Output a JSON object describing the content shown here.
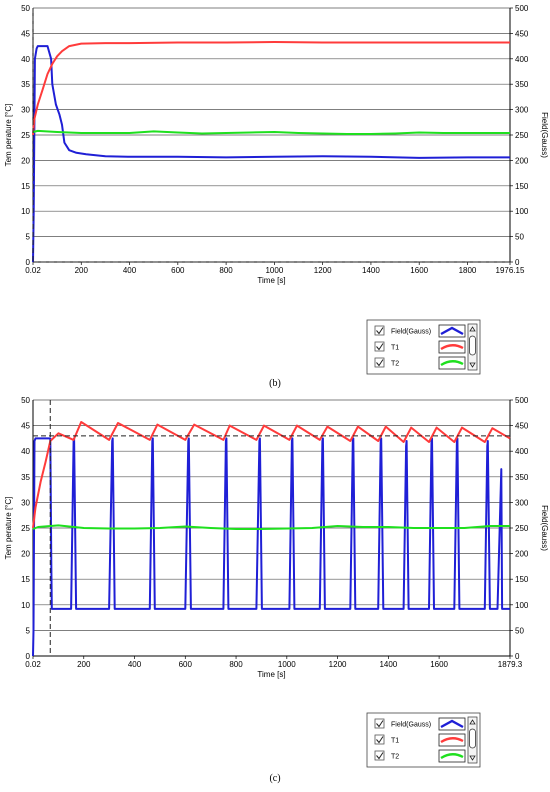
{
  "panels": [
    {
      "caption": "(b)",
      "legend": {
        "items": [
          {
            "label": "Field(Gauss)",
            "checked": true,
            "color": "#1f1fd6"
          },
          {
            "label": "T1",
            "checked": true,
            "color": "#ff3b3b"
          },
          {
            "label": "T2",
            "checked": true,
            "color": "#1fe01f"
          }
        ],
        "scroll_up": "up-arrow",
        "scroll_down": "down-arrow"
      }
    },
    {
      "caption": "(c)",
      "legend": {
        "items": [
          {
            "label": "Field(Gauss)",
            "checked": true,
            "color": "#1f1fd6"
          },
          {
            "label": "T1",
            "checked": true,
            "color": "#ff3b3b"
          },
          {
            "label": "T2",
            "checked": true,
            "color": "#1fe01f"
          }
        ],
        "scroll_up": "up-arrow",
        "scroll_down": "down-arrow"
      }
    }
  ],
  "chart_data": [
    {
      "type": "line",
      "title": "",
      "xlabel": "Time [s]",
      "ylabel": "Tem perature [°C]",
      "y2label": "Field(Gauss)",
      "xlim": [
        0.02,
        1976.15
      ],
      "ylim": [
        0,
        50
      ],
      "y2lim": [
        0,
        500
      ],
      "grid": "horizontal",
      "x_ticks": [
        "0.02",
        "200",
        "400",
        "600",
        "800",
        "1000",
        "1200",
        "1400",
        "1600",
        "1800",
        "1976.15"
      ],
      "x_tick_values": [
        0.02,
        200,
        400,
        600,
        800,
        1000,
        1200,
        1400,
        1600,
        1800,
        1976.15
      ],
      "y_ticks": [
        "0",
        "5",
        "10",
        "15",
        "20",
        "25",
        "30",
        "35",
        "40",
        "45",
        "50"
      ],
      "y_tick_values": [
        0,
        5,
        10,
        15,
        20,
        25,
        30,
        35,
        40,
        45,
        50
      ],
      "y2_ticks": [
        "0",
        "50",
        "100",
        "150",
        "200",
        "250",
        "300",
        "350",
        "400",
        "450",
        "500"
      ],
      "y2_tick_values": [
        0,
        50,
        100,
        150,
        200,
        250,
        300,
        350,
        400,
        450,
        500
      ],
      "markers": [
        {
          "x": 0.02,
          "style": "dashed-vertical"
        },
        {
          "y": 0,
          "style": "dashed-horizontal"
        }
      ],
      "series": [
        {
          "name": "Field(Gauss)",
          "color": "#1f1fd6",
          "axis": "right",
          "x": [
            0,
            3,
            8,
            15,
            20,
            30,
            60,
            75,
            80,
            95,
            110,
            120,
            130,
            150,
            180,
            220,
            300,
            400,
            600,
            800,
            1000,
            1200,
            1400,
            1600,
            1800,
            1976
          ],
          "y": [
            0,
            100,
            400,
            420,
            425,
            425,
            425,
            400,
            350,
            310,
            290,
            270,
            235,
            220,
            215,
            212,
            208,
            207,
            207,
            206,
            207,
            208,
            207,
            205,
            206,
            206
          ]
        },
        {
          "name": "T1",
          "color": "#ff3b3b",
          "axis": "left",
          "x": [
            0,
            5,
            20,
            40,
            60,
            80,
            100,
            120,
            150,
            200,
            300,
            400,
            600,
            800,
            1000,
            1200,
            1400,
            1600,
            1800,
            1976
          ],
          "y": [
            25,
            28,
            31,
            34,
            37,
            39,
            40.5,
            41.5,
            42.5,
            43,
            43.1,
            43.1,
            43.2,
            43.2,
            43.3,
            43.2,
            43.2,
            43.2,
            43.2,
            43.2
          ]
        },
        {
          "name": "T2",
          "color": "#1fe01f",
          "axis": "left",
          "x": [
            0,
            20,
            100,
            200,
            300,
            400,
            500,
            600,
            700,
            800,
            900,
            1000,
            1100,
            1200,
            1300,
            1400,
            1500,
            1600,
            1700,
            1800,
            1976
          ],
          "y": [
            25.6,
            25.8,
            25.6,
            25.4,
            25.4,
            25.4,
            25.7,
            25.5,
            25.3,
            25.4,
            25.5,
            25.6,
            25.4,
            25.3,
            25.2,
            25.2,
            25.3,
            25.5,
            25.4,
            25.4,
            25.4
          ]
        }
      ]
    },
    {
      "type": "line",
      "title": "",
      "xlabel": "Time [s]",
      "ylabel": "Tem perature [°C]",
      "y2label": "Field(Gauss)",
      "xlim": [
        0.02,
        1879.3
      ],
      "ylim": [
        0,
        50
      ],
      "y2lim": [
        0,
        500
      ],
      "grid": "horizontal",
      "x_ticks": [
        "0.02",
        "200",
        "400",
        "600",
        "800",
        "1000",
        "1200",
        "1400",
        "1600",
        "1879.3"
      ],
      "x_tick_values": [
        0.02,
        200,
        400,
        600,
        800,
        1000,
        1200,
        1400,
        1600,
        1879.3
      ],
      "y_ticks": [
        "0",
        "5",
        "10",
        "15",
        "20",
        "25",
        "30",
        "35",
        "40",
        "45",
        "50"
      ],
      "y_tick_values": [
        0,
        5,
        10,
        15,
        20,
        25,
        30,
        35,
        40,
        45,
        50
      ],
      "y2_ticks": [
        "0",
        "50",
        "100",
        "150",
        "200",
        "250",
        "300",
        "350",
        "400",
        "450",
        "500"
      ],
      "y2_tick_values": [
        0,
        50,
        100,
        150,
        200,
        250,
        300,
        350,
        400,
        450,
        500
      ],
      "markers": [
        {
          "x": 68,
          "style": "dashed-vertical"
        },
        {
          "y": 43,
          "style": "dashed-horizontal"
        }
      ],
      "series": [
        {
          "name": "Field(Gauss)",
          "color": "#1f1fd6",
          "axis": "right",
          "x": [
            0,
            2,
            6,
            10,
            68,
            72,
            74,
            150,
            160,
            162,
            170,
            300,
            312,
            314,
            322,
            460,
            470,
            472,
            480,
            600,
            612,
            614,
            622,
            750,
            760,
            762,
            770,
            880,
            892,
            894,
            902,
            1010,
            1020,
            1022,
            1030,
            1130,
            1140,
            1142,
            1150,
            1250,
            1260,
            1262,
            1270,
            1360,
            1370,
            1372,
            1380,
            1460,
            1470,
            1472,
            1480,
            1560,
            1570,
            1572,
            1580,
            1660,
            1670,
            1672,
            1680,
            1780,
            1790,
            1792,
            1800,
            1830,
            1845,
            1848,
            1879
          ],
          "y": [
            0,
            50,
            420,
            425,
            425,
            180,
            92,
            92,
            420,
            425,
            92,
            92,
            420,
            425,
            92,
            92,
            420,
            425,
            92,
            92,
            420,
            425,
            92,
            92,
            420,
            425,
            92,
            92,
            420,
            425,
            92,
            92,
            420,
            425,
            92,
            92,
            420,
            425,
            92,
            92,
            420,
            425,
            92,
            92,
            420,
            425,
            92,
            92,
            410,
            420,
            92,
            92,
            420,
            425,
            92,
            92,
            420,
            425,
            92,
            92,
            410,
            420,
            92,
            92,
            365,
            92,
            92
          ]
        },
        {
          "name": "T1",
          "color": "#ff3b3b",
          "axis": "left",
          "x": [
            0,
            10,
            30,
            50,
            68,
            100,
            160,
            190,
            300,
            335,
            460,
            490,
            600,
            635,
            750,
            775,
            880,
            910,
            1010,
            1040,
            1130,
            1160,
            1250,
            1280,
            1360,
            1390,
            1460,
            1490,
            1560,
            1590,
            1660,
            1690,
            1780,
            1810,
            1879
          ],
          "y": [
            25,
            29,
            34,
            38,
            42,
            43.5,
            42.2,
            45.7,
            42.2,
            45.5,
            42.2,
            45.2,
            42.2,
            45.2,
            42.2,
            45.0,
            42.2,
            45.0,
            42.2,
            45.0,
            42.2,
            44.8,
            42.0,
            44.8,
            42.0,
            44.8,
            41.8,
            44.6,
            41.8,
            44.6,
            41.8,
            44.6,
            41.8,
            44.5,
            42.5
          ]
        },
        {
          "name": "T2",
          "color": "#1fe01f",
          "axis": "left",
          "x": [
            0,
            20,
            100,
            200,
            300,
            400,
            500,
            600,
            700,
            800,
            900,
            1000,
            1100,
            1200,
            1300,
            1400,
            1500,
            1600,
            1700,
            1800,
            1879
          ],
          "y": [
            24.8,
            25.2,
            25.5,
            25.0,
            24.9,
            24.9,
            25.0,
            25.3,
            25.0,
            24.8,
            24.8,
            24.9,
            25.0,
            25.4,
            25.2,
            25.2,
            25.0,
            25.0,
            25.0,
            25.4,
            25.4
          ]
        }
      ]
    }
  ]
}
